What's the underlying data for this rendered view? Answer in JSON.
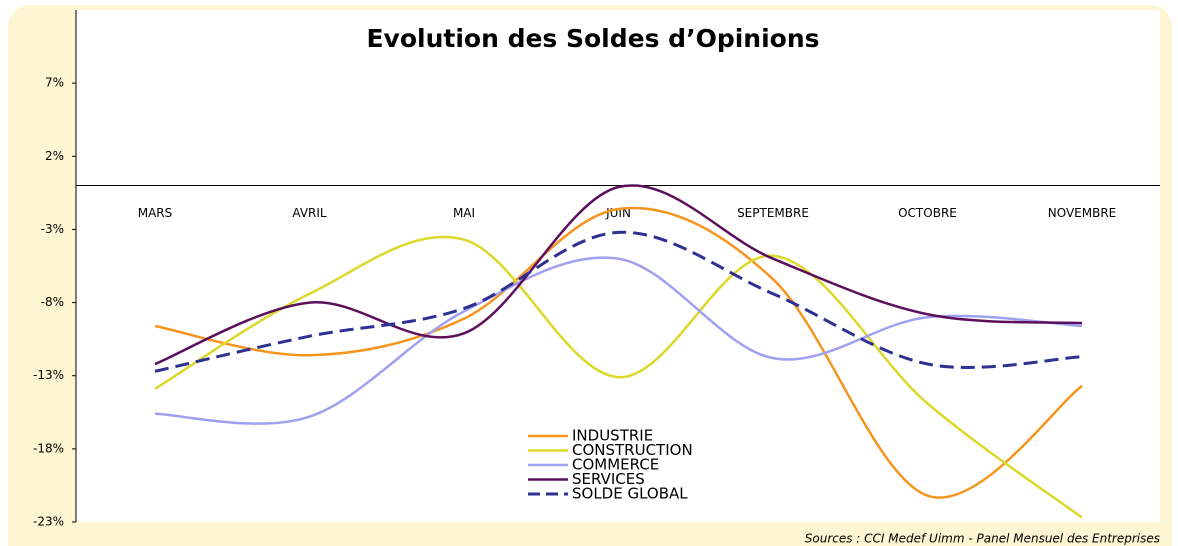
{
  "chart_data": {
    "type": "line",
    "title": "Evolution des Soldes d’Opinions",
    "source": "Sources : CCI Medef Uimm - Panel Mensuel des Entreprises",
    "categories": [
      "MARS",
      "AVRIL",
      "MAI",
      "JUIN",
      "SEPTEMBRE",
      "OCTOBRE",
      "NOVEMBRE"
    ],
    "ylim": [
      -23,
      12
    ],
    "yticks": [
      {
        "value": -23,
        "label": "-23%"
      },
      {
        "value": -18,
        "label": "-18%"
      },
      {
        "value": -13,
        "label": "-13%"
      },
      {
        "value": -8,
        "label": "-8%"
      },
      {
        "value": -3,
        "label": "-3%"
      },
      {
        "value": 2,
        "label": "2%"
      },
      {
        "value": 7,
        "label": "7%"
      }
    ],
    "series": [
      {
        "name": "INDUSTRIE",
        "color": "#f7941d",
        "values": [
          -9.6,
          -11.6,
          -9.1,
          -1.6,
          -6.4,
          -21.2,
          -13.7
        ]
      },
      {
        "name": "CONSTRUCTION",
        "color": "#dcd82a",
        "values": [
          -13.9,
          -7.4,
          -3.7,
          -13.1,
          -4.8,
          -14.9,
          -22.7
        ]
      },
      {
        "name": "COMMERCE",
        "color": "#a0a0f0",
        "values": [
          -15.6,
          -15.8,
          -8.6,
          -5.0,
          -11.8,
          -9.0,
          -9.6
        ]
      },
      {
        "name": "SERVICES",
        "color": "#5c0f5c",
        "values": [
          -12.2,
          -8.0,
          -10.1,
          -0.1,
          -5.0,
          -8.8,
          -9.4
        ]
      },
      {
        "name": "SOLDE GLOBAL",
        "color": "#2e3192",
        "dashed": true,
        "values": [
          -12.7,
          -10.3,
          -8.4,
          -3.2,
          -7.4,
          -12.2,
          -11.7
        ]
      }
    ]
  }
}
